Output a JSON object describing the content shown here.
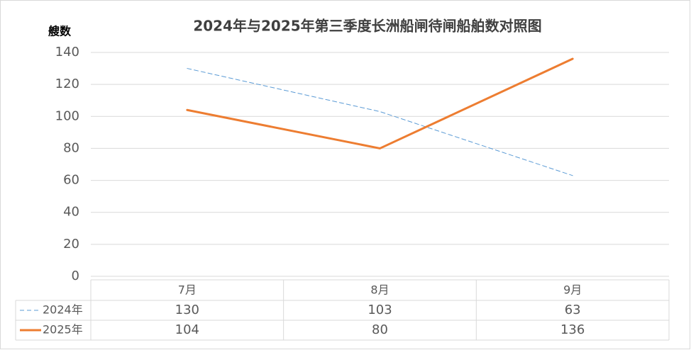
{
  "chart_data": {
    "type": "line",
    "title": "2024年与2025年第三季度长洲船闸待闸船舶数对照图",
    "y_label": "艘数",
    "categories": [
      "7月",
      "8月",
      "9月"
    ],
    "series": [
      {
        "name": "2024年",
        "color": "#5b9bd5",
        "dashed": true,
        "values": [
          130,
          103,
          63
        ]
      },
      {
        "name": "2025年",
        "color": "#ed7d31",
        "dashed": false,
        "values": [
          104,
          80,
          136
        ]
      }
    ],
    "ylim": [
      0,
      140
    ],
    "yticks": [
      0,
      20,
      40,
      60,
      80,
      100,
      120,
      140
    ],
    "grid": true,
    "data_table": true
  }
}
